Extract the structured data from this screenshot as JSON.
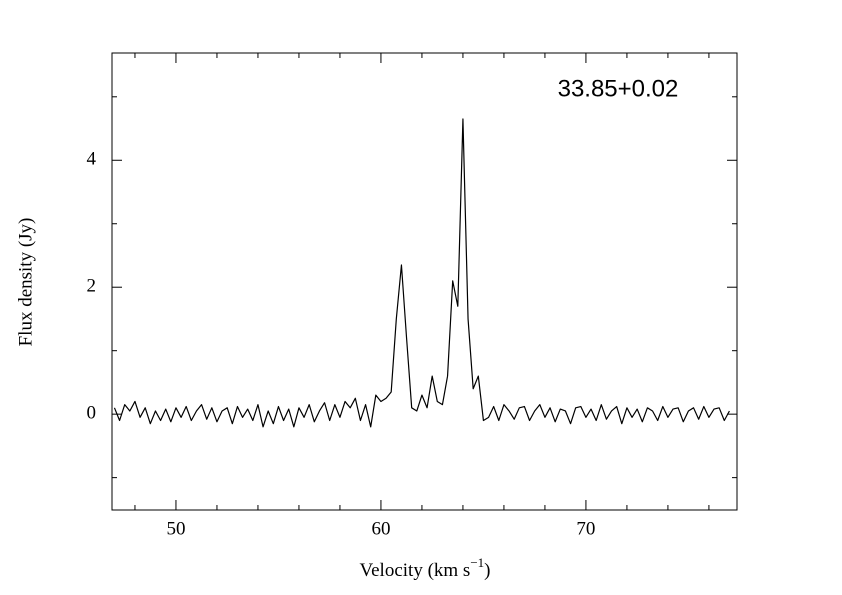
{
  "chart_data": {
    "type": "line",
    "annotation": "33.85+0.02",
    "xlabel": [
      "Velocity (km s",
      "−1",
      ")"
    ],
    "ylabel": "Flux density (Jy)",
    "xlim": [
      46.88,
      77.37
    ],
    "ylim": [
      -1.51,
      5.69
    ],
    "xticks": [
      50,
      60,
      70
    ],
    "yticks": [
      0,
      2,
      4
    ],
    "xminorticks": [
      48,
      52,
      54,
      56,
      58,
      62,
      64,
      66,
      68,
      72,
      74,
      76
    ],
    "yminorticks": [
      -1,
      1,
      3,
      5
    ],
    "color": "#000000",
    "x": [
      47,
      47.25,
      47.5,
      47.75,
      48,
      48.25,
      48.5,
      48.75,
      49,
      49.25,
      49.5,
      49.75,
      50,
      50.25,
      50.5,
      50.75,
      51,
      51.25,
      51.5,
      51.75,
      52,
      52.25,
      52.5,
      52.75,
      53,
      53.25,
      53.5,
      53.75,
      54,
      54.25,
      54.5,
      54.75,
      55,
      55.25,
      55.5,
      55.75,
      56,
      56.25,
      56.5,
      56.75,
      57,
      57.25,
      57.5,
      57.75,
      58,
      58.25,
      58.5,
      58.75,
      59,
      59.25,
      59.5,
      59.75,
      60,
      60.25,
      60.5,
      60.75,
      61,
      61.25,
      61.5,
      61.75,
      62,
      62.25,
      62.5,
      62.75,
      63,
      63.25,
      63.5,
      63.75,
      64,
      64.25,
      64.5,
      64.75,
      65,
      65.25,
      65.5,
      65.75,
      66,
      66.25,
      66.5,
      66.75,
      67,
      67.25,
      67.5,
      67.75,
      68,
      68.25,
      68.5,
      68.75,
      69,
      69.25,
      69.5,
      69.75,
      70,
      70.25,
      70.5,
      70.75,
      71,
      71.25,
      71.5,
      71.75,
      72,
      72.25,
      72.5,
      72.75,
      73,
      73.25,
      73.5,
      73.75,
      74,
      74.25,
      74.5,
      74.75,
      75,
      75.25,
      75.5,
      75.75,
      76,
      76.25,
      76.5,
      76.75,
      77
    ],
    "values": [
      0.1,
      -0.1,
      0.15,
      0.05,
      0.2,
      -0.05,
      0.1,
      -0.15,
      0.05,
      -0.1,
      0.08,
      -0.12,
      0.1,
      -0.05,
      0.12,
      -0.1,
      0.05,
      0.15,
      -0.08,
      0.1,
      -0.12,
      0.05,
      0.1,
      -0.15,
      0.12,
      -0.05,
      0.08,
      -0.1,
      0.15,
      -0.2,
      0.05,
      -0.15,
      0.12,
      -0.1,
      0.08,
      -0.2,
      0.1,
      -0.05,
      0.15,
      -0.12,
      0.05,
      0.18,
      -0.1,
      0.15,
      -0.05,
      0.2,
      0.1,
      0.25,
      -0.1,
      0.15,
      -0.2,
      0.3,
      0.2,
      0.25,
      0.35,
      1.5,
      2.35,
      1.2,
      0.1,
      0.05,
      0.3,
      0.1,
      0.6,
      0.2,
      0.15,
      0.6,
      2.1,
      1.7,
      4.65,
      1.5,
      0.4,
      0.6,
      -0.1,
      -0.05,
      0.12,
      -0.1,
      0.15,
      0.05,
      -0.08,
      0.1,
      0.12,
      -0.1,
      0.05,
      0.15,
      -0.05,
      0.1,
      -0.12,
      0.08,
      0.05,
      -0.15,
      0.1,
      0.12,
      -0.05,
      0.08,
      -0.1,
      0.15,
      -0.08,
      0.05,
      0.12,
      -0.15,
      0.1,
      -0.05,
      0.08,
      -0.12,
      0.1,
      0.05,
      -0.1,
      0.12,
      -0.05,
      0.08,
      0.1,
      -0.12,
      0.05,
      0.1,
      -0.08,
      0.12,
      -0.05,
      0.08,
      0.1,
      -0.1,
      0.05
    ]
  }
}
